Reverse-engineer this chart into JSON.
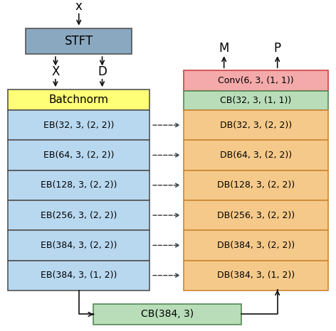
{
  "fig_w": 4.72,
  "fig_h": 4.66,
  "dpi": 100,
  "bg": "#ffffff",
  "stft": {
    "label": "STFT",
    "fc": "#8aa8c0",
    "ec": "#555555"
  },
  "batchnorm": {
    "label": "Batchnorm",
    "fc": "#ffff77",
    "ec": "#555555"
  },
  "encoder_labels": [
    "EB(32, 3, (2, 2))",
    "EB(64, 3, (2, 2))",
    "EB(128, 3, (2, 2))",
    "EB(256, 3, (2, 2))",
    "EB(384, 3, (2, 2))",
    "EB(384, 3, (1, 2))"
  ],
  "encoder_fc": "#b8d8f0",
  "encoder_ec": "#555555",
  "conv_label": "Conv(6, 3, (1, 1))",
  "conv_fc": "#f4aaaa",
  "conv_ec": "#cc4444",
  "cb32_label": "CB(32, 3, (1, 1))",
  "cb32_fc": "#b8ddb8",
  "cb32_ec": "#558855",
  "decoder_labels": [
    "DB(32, 3, (2, 2))",
    "DB(64, 3, (2, 2))",
    "DB(128, 3, (2, 2))",
    "DB(256, 3, (2, 2))",
    "DB(384, 3, (2, 2))",
    "DB(384, 3, (1, 2))"
  ],
  "decoder_fc": "#f5c98a",
  "decoder_ec": "#cc8833",
  "cb384_label": "CB(384, 3)",
  "cb384_fc": "#b8ddb8",
  "cb384_ec": "#558855",
  "arrow_color": "#111111",
  "dash_color": "#333333"
}
